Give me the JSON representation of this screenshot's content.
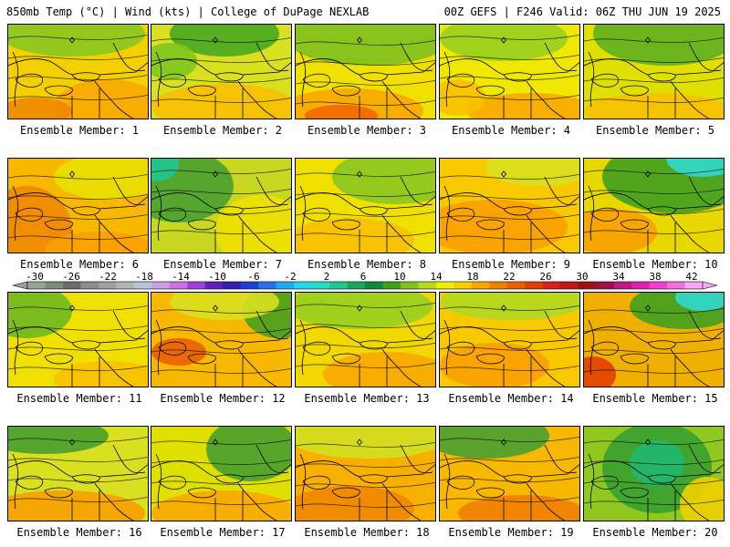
{
  "header": {
    "left": "850mb Temp (°C) | Wind (kts) | College of DuPage NEXLAB",
    "right": "00Z GEFS | F246 Valid: 06Z THU JUN 19 2025"
  },
  "colorbar": {
    "ticks": [
      "-30",
      "-26",
      "-22",
      "-18",
      "-14",
      "-10",
      "-6",
      "-2",
      "2",
      "6",
      "10",
      "14",
      "18",
      "22",
      "26",
      "30",
      "34",
      "38",
      "42"
    ],
    "colors": [
      "#9aa29a",
      "#7e8a7e",
      "#6a6e6a",
      "#8c8c8c",
      "#a0a0a0",
      "#b4b4b4",
      "#b8c4d8",
      "#c8a0e0",
      "#d070e8",
      "#a040d8",
      "#6020c0",
      "#3020b0",
      "#2040d0",
      "#2a70e8",
      "#20a8f0",
      "#20d8e8",
      "#20e0c0",
      "#20c890",
      "#18a860",
      "#108840",
      "#40a020",
      "#80c020",
      "#b8d820",
      "#f0f000",
      "#f8d000",
      "#f8a800",
      "#f08000",
      "#e86000",
      "#e04000",
      "#d82020",
      "#c01818",
      "#a01010",
      "#a01048",
      "#c01880",
      "#e020b0",
      "#f040d0",
      "#f070e0",
      "#f8a8f0"
    ]
  },
  "map_label_prefix": "Ensemble Member: ",
  "panels": [
    {
      "member": "1",
      "base": "#f4d000",
      "blobs": [
        {
          "c": "#88c820",
          "x": 70,
          "y": 10,
          "rx": 80,
          "ry": 25
        },
        {
          "c": "#f8a800",
          "x": 110,
          "y": 90,
          "rx": 60,
          "ry": 30
        },
        {
          "c": "#f08800",
          "x": 30,
          "y": 95,
          "rx": 40,
          "ry": 15
        }
      ]
    },
    {
      "member": "2",
      "base": "#d8e020",
      "blobs": [
        {
          "c": "#48a820",
          "x": 80,
          "y": 10,
          "rx": 60,
          "ry": 25
        },
        {
          "c": "#80c820",
          "x": 20,
          "y": 40,
          "rx": 30,
          "ry": 20
        },
        {
          "c": "#f8c000",
          "x": 80,
          "y": 90,
          "rx": 80,
          "ry": 25
        }
      ]
    },
    {
      "member": "3",
      "base": "#f0e000",
      "blobs": [
        {
          "c": "#80c020",
          "x": 80,
          "y": 15,
          "rx": 90,
          "ry": 30
        },
        {
          "c": "#f8a800",
          "x": 60,
          "y": 95,
          "rx": 80,
          "ry": 25
        },
        {
          "c": "#f06800",
          "x": 50,
          "y": 100,
          "rx": 40,
          "ry": 12
        }
      ]
    },
    {
      "member": "4",
      "base": "#f0e800",
      "blobs": [
        {
          "c": "#98d020",
          "x": 70,
          "y": 15,
          "rx": 70,
          "ry": 25
        },
        {
          "c": "#f8a800",
          "x": 100,
          "y": 95,
          "rx": 70,
          "ry": 20
        },
        {
          "c": "#f8c000",
          "x": 20,
          "y": 80,
          "rx": 30,
          "ry": 20
        }
      ]
    },
    {
      "member": "5",
      "base": "#e0e000",
      "blobs": [
        {
          "c": "#60b020",
          "x": 90,
          "y": 10,
          "rx": 80,
          "ry": 35
        },
        {
          "c": "#f8c000",
          "x": 80,
          "y": 95,
          "rx": 80,
          "ry": 20
        }
      ]
    },
    {
      "member": "6",
      "base": "#f8b800",
      "blobs": [
        {
          "c": "#f08800",
          "x": 20,
          "y": 80,
          "rx": 50,
          "ry": 50
        },
        {
          "c": "#e8e000",
          "x": 110,
          "y": 20,
          "rx": 60,
          "ry": 25
        },
        {
          "c": "#f8a000",
          "x": 100,
          "y": 100,
          "rx": 60,
          "ry": 20
        }
      ]
    },
    {
      "member": "7",
      "base": "#c8d820",
      "blobs": [
        {
          "c": "#48a030",
          "x": 30,
          "y": 30,
          "rx": 60,
          "ry": 40
        },
        {
          "c": "#20c890",
          "x": 5,
          "y": 5,
          "rx": 25,
          "ry": 20
        },
        {
          "c": "#f0e000",
          "x": 120,
          "y": 80,
          "rx": 50,
          "ry": 40
        }
      ]
    },
    {
      "member": "8",
      "base": "#f0e000",
      "blobs": [
        {
          "c": "#88c820",
          "x": 110,
          "y": 20,
          "rx": 70,
          "ry": 30
        },
        {
          "c": "#f8c000",
          "x": 60,
          "y": 90,
          "rx": 70,
          "ry": 25
        }
      ]
    },
    {
      "member": "9",
      "base": "#f8c800",
      "blobs": [
        {
          "c": "#f8a000",
          "x": 60,
          "y": 75,
          "rx": 80,
          "ry": 30
        },
        {
          "c": "#d8e020",
          "x": 110,
          "y": 10,
          "rx": 60,
          "ry": 20
        }
      ]
    },
    {
      "member": "10",
      "base": "#e8d800",
      "blobs": [
        {
          "c": "#40a020",
          "x": 100,
          "y": 20,
          "rx": 80,
          "ry": 40
        },
        {
          "c": "#30d8d0",
          "x": 130,
          "y": 0,
          "rx": 40,
          "ry": 20
        },
        {
          "c": "#f8a000",
          "x": 30,
          "y": 80,
          "rx": 50,
          "ry": 25
        }
      ]
    },
    {
      "member": "11",
      "base": "#f0e000",
      "blobs": [
        {
          "c": "#70b820",
          "x": 20,
          "y": 20,
          "rx": 50,
          "ry": 30
        },
        {
          "c": "#f8c000",
          "x": 110,
          "y": 95,
          "rx": 60,
          "ry": 20
        }
      ]
    },
    {
      "member": "12",
      "base": "#f8b800",
      "blobs": [
        {
          "c": "#48a020",
          "x": 140,
          "y": 20,
          "rx": 40,
          "ry": 30
        },
        {
          "c": "#d8e020",
          "x": 80,
          "y": 10,
          "rx": 60,
          "ry": 20
        },
        {
          "c": "#e86000",
          "x": 30,
          "y": 65,
          "rx": 30,
          "ry": 15
        }
      ]
    },
    {
      "member": "13",
      "base": "#f0d800",
      "blobs": [
        {
          "c": "#98d020",
          "x": 70,
          "y": 15,
          "rx": 80,
          "ry": 25
        },
        {
          "c": "#f8a800",
          "x": 100,
          "y": 90,
          "rx": 70,
          "ry": 25
        }
      ]
    },
    {
      "member": "14",
      "base": "#f8c800",
      "blobs": [
        {
          "c": "#b0d820",
          "x": 80,
          "y": 10,
          "rx": 80,
          "ry": 20
        },
        {
          "c": "#f8a000",
          "x": 60,
          "y": 80,
          "rx": 60,
          "ry": 25
        }
      ]
    },
    {
      "member": "15",
      "base": "#f0b000",
      "blobs": [
        {
          "c": "#40a020",
          "x": 110,
          "y": 15,
          "rx": 60,
          "ry": 25
        },
        {
          "c": "#30d8d0",
          "x": 130,
          "y": 5,
          "rx": 30,
          "ry": 15
        },
        {
          "c": "#e04000",
          "x": 10,
          "y": 90,
          "rx": 25,
          "ry": 20
        }
      ]
    },
    {
      "member": "16",
      "base": "#d8e020",
      "blobs": [
        {
          "c": "#48a030",
          "x": 40,
          "y": 10,
          "rx": 70,
          "ry": 20
        },
        {
          "c": "#f8a000",
          "x": 60,
          "y": 95,
          "rx": 90,
          "ry": 25
        }
      ]
    },
    {
      "member": "17",
      "base": "#e0e000",
      "blobs": [
        {
          "c": "#48a030",
          "x": 110,
          "y": 25,
          "rx": 50,
          "ry": 35
        },
        {
          "c": "#f8a800",
          "x": 80,
          "y": 95,
          "rx": 80,
          "ry": 25
        }
      ]
    },
    {
      "member": "18",
      "base": "#f8b000",
      "blobs": [
        {
          "c": "#d0e020",
          "x": 80,
          "y": 10,
          "rx": 90,
          "ry": 25
        },
        {
          "c": "#f08800",
          "x": 60,
          "y": 90,
          "rx": 70,
          "ry": 25
        }
      ]
    },
    {
      "member": "19",
      "base": "#f8b800",
      "blobs": [
        {
          "c": "#48a030",
          "x": 50,
          "y": 10,
          "rx": 70,
          "ry": 25
        },
        {
          "c": "#f08000",
          "x": 90,
          "y": 95,
          "rx": 70,
          "ry": 20
        }
      ]
    },
    {
      "member": "20",
      "base": "#90c820",
      "blobs": [
        {
          "c": "#38a030",
          "x": 80,
          "y": 45,
          "rx": 60,
          "ry": 50
        },
        {
          "c": "#20b870",
          "x": 80,
          "y": 40,
          "rx": 30,
          "ry": 25
        },
        {
          "c": "#f0d000",
          "x": 135,
          "y": 85,
          "rx": 30,
          "ry": 30
        }
      ]
    }
  ]
}
